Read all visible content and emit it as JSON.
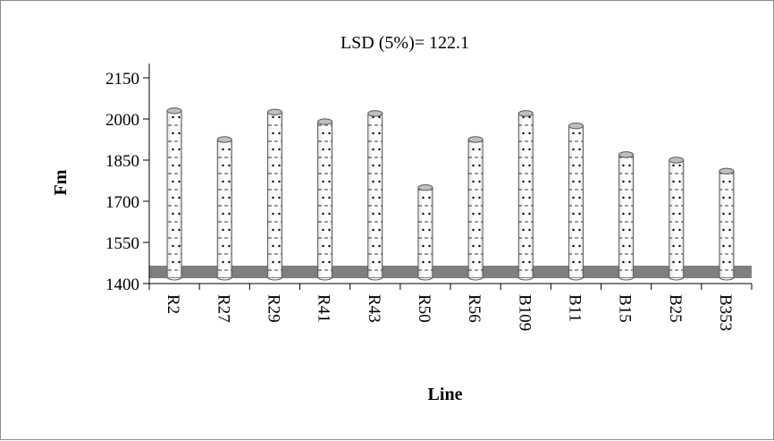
{
  "chart_data": {
    "type": "bar",
    "title": "",
    "annotation": "LSD (5%)= 122.1",
    "xlabel": "Line",
    "ylabel": "Fm",
    "ylim": [
      1400,
      2150
    ],
    "yticks": [
      1400,
      1550,
      1700,
      1850,
      2000,
      2150
    ],
    "categories": [
      "R2",
      "R27",
      "R29",
      "R41",
      "R43",
      "R50",
      "R56",
      "B109",
      "B11",
      "B15",
      "B25",
      "B353"
    ],
    "values": [
      2030,
      1925,
      2025,
      1990,
      2020,
      1750,
      1925,
      2020,
      1975,
      1870,
      1850,
      1810
    ],
    "grid": false,
    "legend": "none",
    "colors": {
      "bar_fill": "#ffffff",
      "bar_outline": "#595959",
      "bar_top": "#bfbfbf",
      "bar_dots": "#000000",
      "floor": "#7f7f7f",
      "axis": "#000000"
    }
  }
}
